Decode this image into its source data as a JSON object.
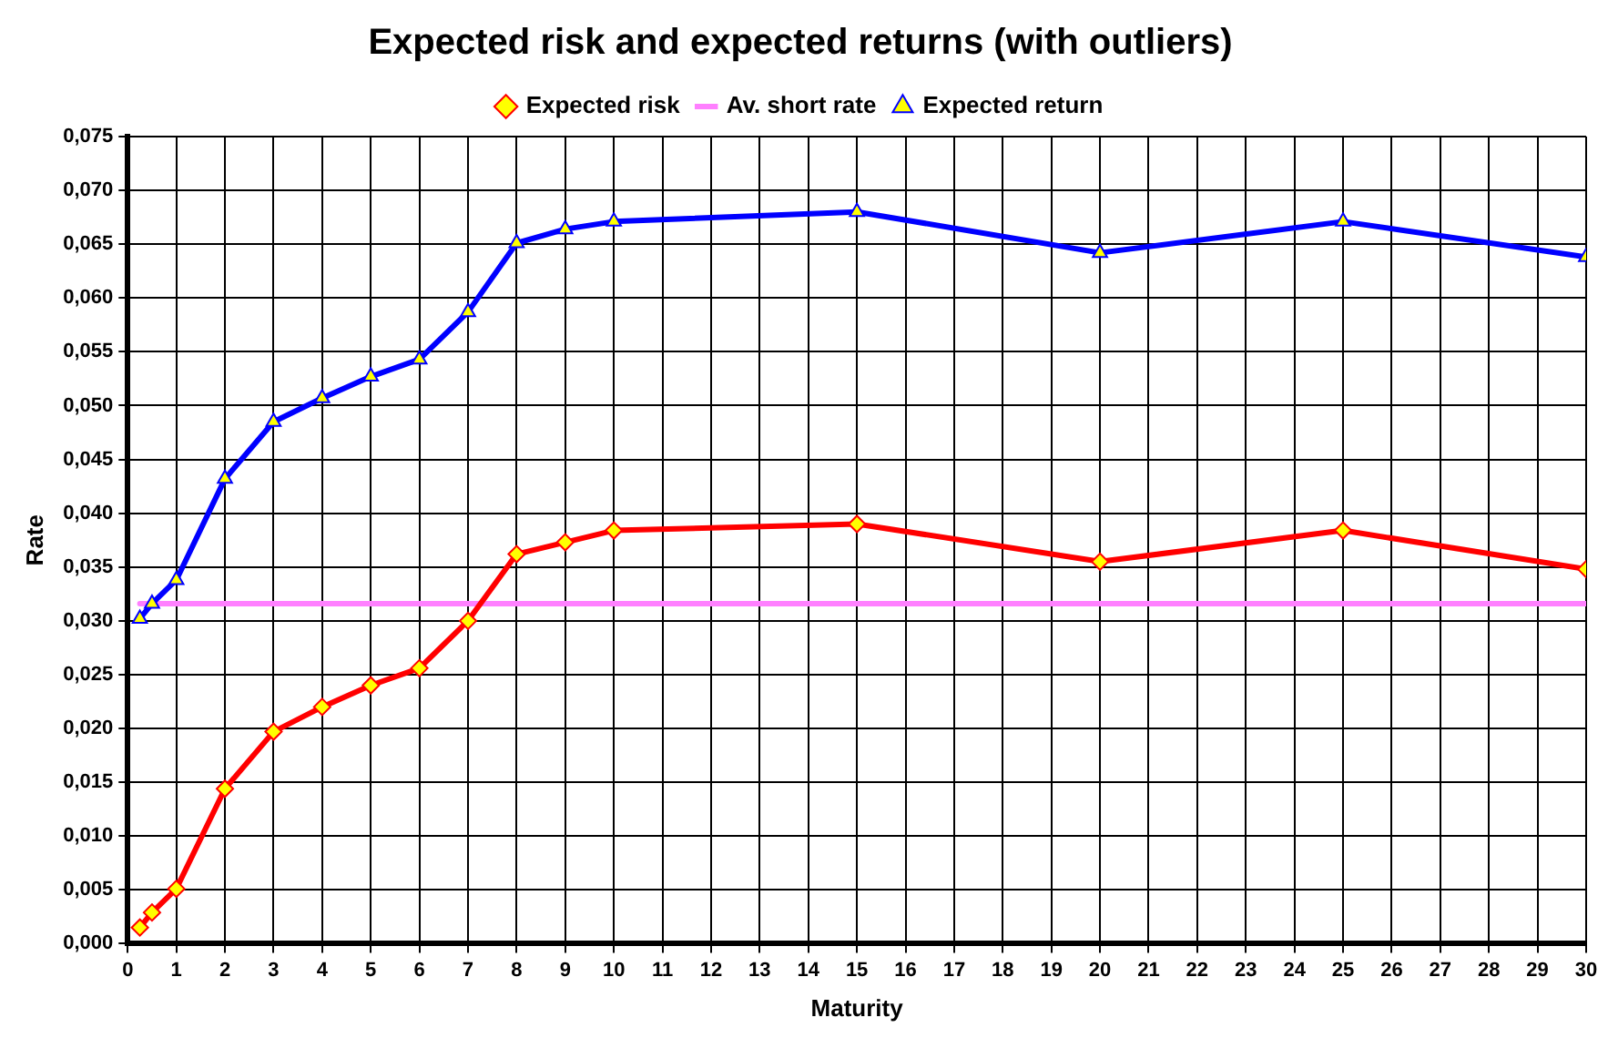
{
  "chart_data": {
    "type": "line",
    "title": "Expected risk and expected returns (with outliers)",
    "xlabel": "Maturity",
    "ylabel": "Rate",
    "x": [
      0.25,
      0.5,
      1,
      2,
      3,
      4,
      5,
      6,
      7,
      8,
      9,
      10,
      15,
      20,
      25,
      30
    ],
    "series": [
      {
        "name": "Expected risk",
        "color": "#ff0000",
        "marker": "diamond",
        "values": [
          0.0015,
          0.0029,
          0.0051,
          0.0144,
          0.0197,
          0.022,
          0.024,
          0.0256,
          0.03,
          0.0362,
          0.0373,
          0.0384,
          0.039,
          0.0355,
          0.0384,
          0.0348
        ]
      },
      {
        "name": "Av. short rate",
        "color": "#ff80ff",
        "marker": "none",
        "x": [
          0.25,
          30
        ],
        "values": [
          0.0316,
          0.0316
        ]
      },
      {
        "name": "Expected return",
        "color": "#0000ff",
        "marker": "triangle",
        "values": [
          0.0302,
          0.0316,
          0.0338,
          0.0432,
          0.0485,
          0.0507,
          0.0527,
          0.0543,
          0.0587,
          0.0651,
          0.0664,
          0.0671,
          0.068,
          0.0642,
          0.0671,
          0.0638
        ]
      }
    ],
    "xlim": [
      0,
      30
    ],
    "xticks": [
      0,
      1,
      2,
      3,
      4,
      5,
      6,
      7,
      8,
      9,
      10,
      11,
      12,
      13,
      14,
      15,
      16,
      17,
      18,
      19,
      20,
      21,
      22,
      23,
      24,
      25,
      26,
      27,
      28,
      29,
      30
    ],
    "ylim": [
      0,
      0.075
    ],
    "yticks": [
      {
        "value": 0,
        "label": "0,000"
      },
      {
        "value": 0.005,
        "label": "0,005"
      },
      {
        "value": 0.01,
        "label": "0,010"
      },
      {
        "value": 0.015,
        "label": "0,015"
      },
      {
        "value": 0.02,
        "label": "0,020"
      },
      {
        "value": 0.025,
        "label": "0,025"
      },
      {
        "value": 0.03,
        "label": "0,030"
      },
      {
        "value": 0.035,
        "label": "0,035"
      },
      {
        "value": 0.04,
        "label": "0,040"
      },
      {
        "value": 0.045,
        "label": "0,045"
      },
      {
        "value": 0.05,
        "label": "0,050"
      },
      {
        "value": 0.055,
        "label": "0,055"
      },
      {
        "value": 0.06,
        "label": "0,060"
      },
      {
        "value": 0.065,
        "label": "0,065"
      },
      {
        "value": 0.07,
        "label": "0,070"
      },
      {
        "value": 0.075,
        "label": "0,075"
      }
    ],
    "grid": true,
    "legend": "top",
    "line_style": "solid"
  }
}
